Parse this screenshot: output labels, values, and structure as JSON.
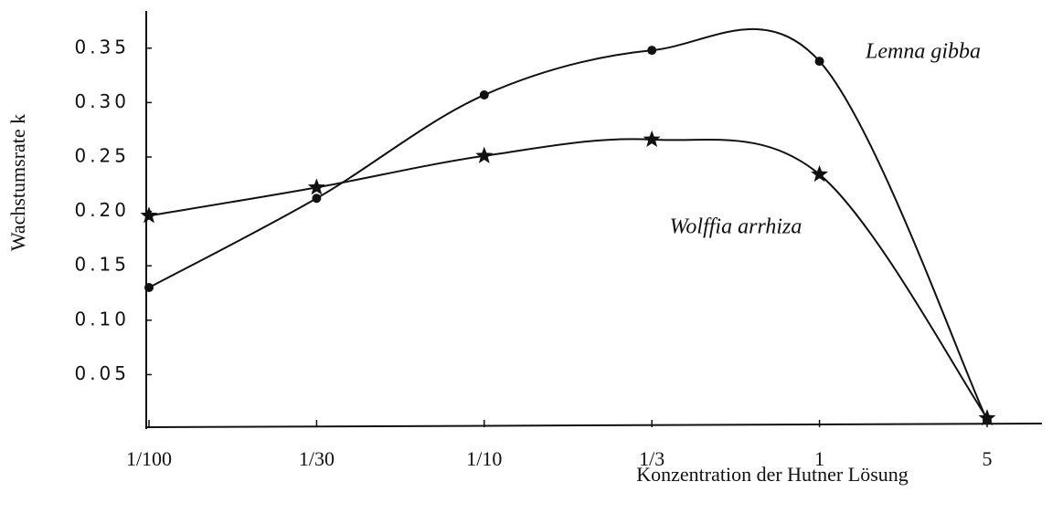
{
  "chart_data": {
    "type": "line",
    "x_label": "Konzentration der Hutner Lösung",
    "y_label": "Wachstumsrate k",
    "categories": [
      "1/100",
      "1/30",
      "1/10",
      "1/3",
      "1",
      "5"
    ],
    "series": [
      {
        "name": "Lemna gibba",
        "color": "#111111",
        "marker": "circle",
        "values": [
          0.13,
          0.212,
          0.307,
          0.348,
          0.338,
          0.008
        ]
      },
      {
        "name": "Wolffia arrhiza",
        "color": "#111111",
        "marker": "star",
        "values": [
          0.196,
          0.222,
          0.251,
          0.266,
          0.234,
          0.01
        ]
      }
    ],
    "ylim": [
      0,
      0.38
    ],
    "yticks": [
      0.05,
      {
        "value": 0.1,
        "label": "0.10"
      },
      0.15,
      {
        "value": 0.2,
        "label": "0.20"
      },
      0.25,
      {
        "value": 0.3,
        "label": "0.30"
      },
      0.35
    ],
    "grid": false
  }
}
